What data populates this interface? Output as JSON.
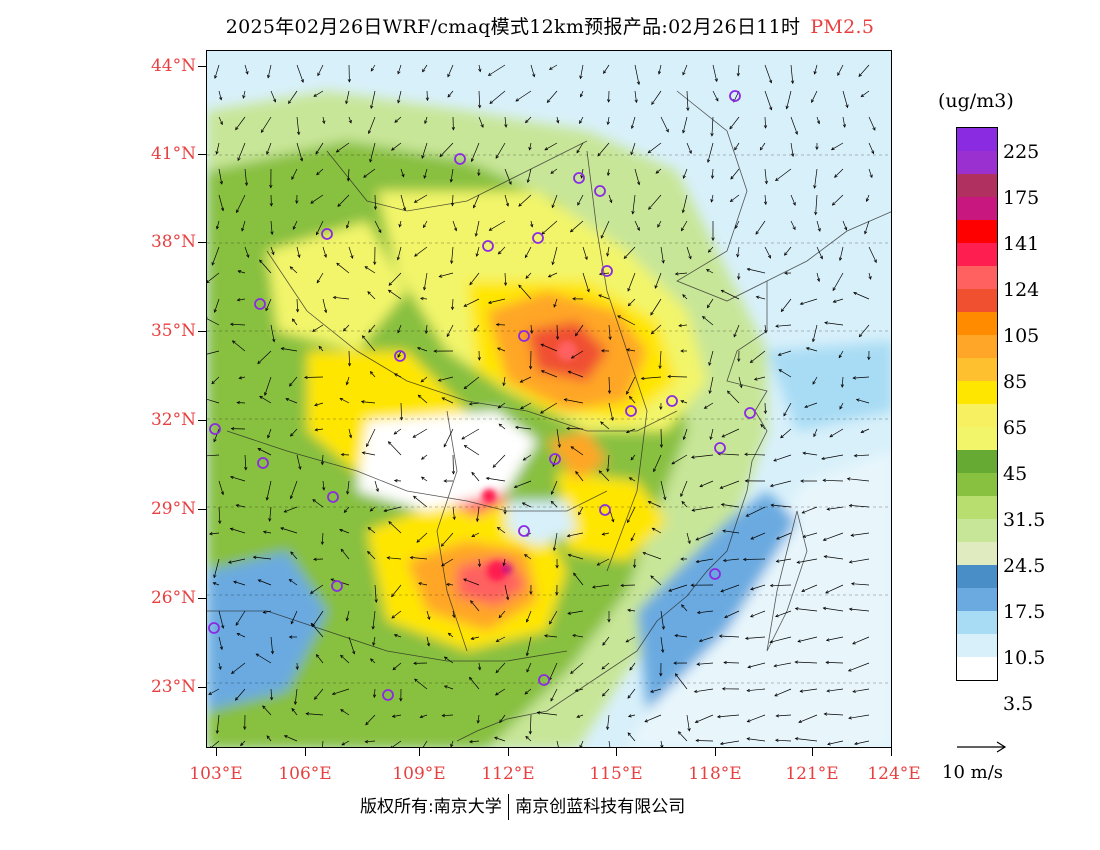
{
  "title": {
    "text": "2025年02月26日WRF/cmaq模式12km预报产品:02月26日11时",
    "pollutant": "PM2.5"
  },
  "map": {
    "lat_labels": [
      "44°N",
      "41°N",
      "38°N",
      "35°N",
      "32°N",
      "29°N",
      "26°N",
      "23°N"
    ],
    "lon_labels": [
      "103°E",
      "106°E",
      "109°E",
      "112°E",
      "115°E",
      "118°E",
      "121°E",
      "124°E"
    ],
    "lat_range": [
      21.0,
      44.5
    ],
    "lon_range": [
      102.8,
      124.0
    ]
  },
  "legend": {
    "unit": "(ug/m3)",
    "colors": [
      "#8a2be2",
      "#9b30d0",
      "#b03060",
      "#c81880",
      "#ff0000",
      "#ff1e50",
      "#ff6060",
      "#f05030",
      "#ff8c00",
      "#ffa628",
      "#ffc030",
      "#ffe600",
      "#f7f060",
      "#f2f56a",
      "#66aa33",
      "#88c040",
      "#b8de70",
      "#c8e698",
      "#e0ecc0",
      "#4a8ec8",
      "#6aaae0",
      "#a8dcf4",
      "#d8f0fa",
      "#ffffff"
    ],
    "labels": [
      "225",
      "175",
      "141",
      "124",
      "105",
      "85",
      "65",
      "45",
      "31.5",
      "24.5",
      "17.5",
      "10.5",
      "3.5"
    ]
  },
  "wind_reference": {
    "label": "10 m/s"
  },
  "copyright": {
    "left": "版权所有:南京大学",
    "right": "南京创蓝科技有限公司"
  }
}
